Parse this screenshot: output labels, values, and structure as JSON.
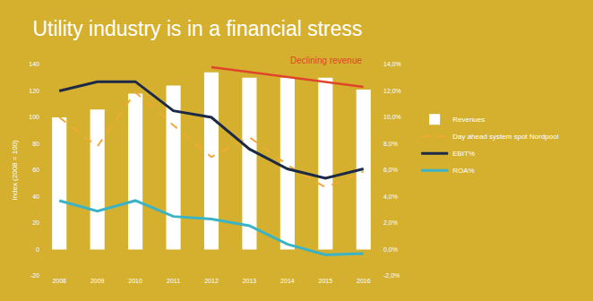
{
  "chart_data": {
    "type": "bar",
    "title": "Utility industry is in a financial stress",
    "y_label": "Index (2008 = 100)",
    "categories": [
      "2008",
      "2009",
      "2010",
      "2011",
      "2012",
      "2013",
      "2014",
      "2015",
      "2016"
    ],
    "series": [
      {
        "name": "Revenues",
        "type": "bar",
        "color": "#ffffff",
        "values": [
          100,
          106,
          118,
          124,
          134,
          130,
          130,
          130,
          121
        ]
      },
      {
        "name": "Day ahead system spot Nordpool",
        "type": "line",
        "color": "#f2a93b",
        "line_style": "dash",
        "values": [
          100,
          78,
          119,
          94,
          70,
          85,
          64,
          47,
          59
        ]
      },
      {
        "name": "EBIT%",
        "type": "line",
        "color": "#1c2a48",
        "axis": "y2",
        "values": [
          12.0,
          12.7,
          12.7,
          10.5,
          10.0,
          7.6,
          6.1,
          5.4,
          6.1
        ]
      },
      {
        "name": "ROA%",
        "type": "line",
        "color": "#3bb3c6",
        "axis": "y2",
        "values": [
          3.7,
          2.9,
          3.7,
          2.5,
          2.3,
          1.8,
          0.4,
          -0.4,
          -0.3
        ]
      }
    ],
    "ylim": [
      -20,
      140
    ],
    "yticks": [
      -20,
      0,
      20,
      40,
      60,
      80,
      100,
      120,
      140
    ],
    "y2lim": [
      -2,
      14
    ],
    "y2ticks": [
      {
        "value": -2,
        "label": "-2,0%"
      },
      {
        "value": 0,
        "label": "0,0%"
      },
      {
        "value": 2,
        "label": "2,0%"
      },
      {
        "value": 4,
        "label": "4,0%"
      },
      {
        "value": 6,
        "label": "6,0%"
      },
      {
        "value": 8,
        "label": "8,0%"
      },
      {
        "value": 10,
        "label": "10,0%"
      },
      {
        "value": 12,
        "label": "12,0%"
      },
      {
        "value": 14,
        "label": "14,0%"
      }
    ],
    "grid": false,
    "legend": "right",
    "annotations": [
      {
        "text": "Declining revenue",
        "color": "#e0452b",
        "x_from": "2012",
        "x_to": "2016",
        "y_from": 138,
        "y_to": 123
      }
    ]
  }
}
